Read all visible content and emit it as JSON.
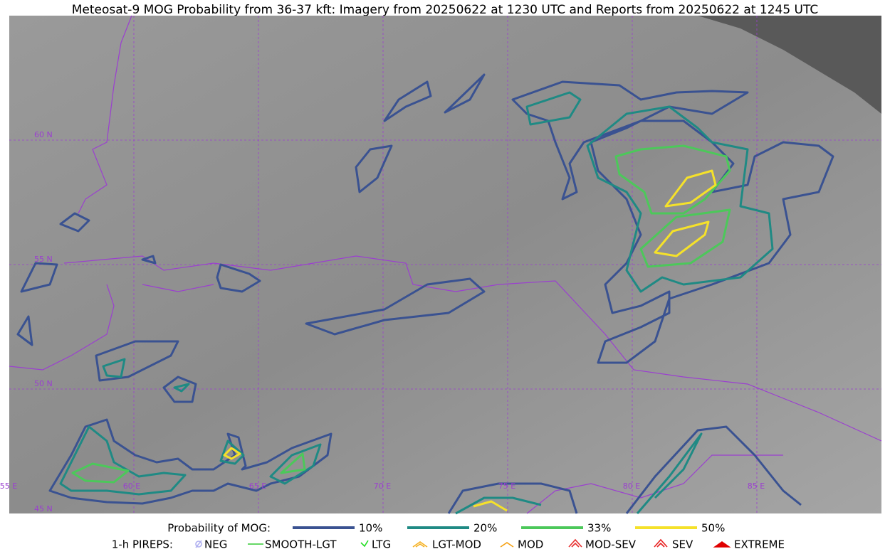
{
  "title": "Meteosat-9 MOG Probability from 36-37 kft: Imagery from 20250622 at 1230 UTC and Reports from 20250622 at 1245 UTC",
  "grid_labels": {
    "lat": [
      "60 N",
      "55 N",
      "50 N",
      "45 N"
    ],
    "lon": [
      "55 E",
      "60 E",
      "65 E",
      "70 E",
      "75 E",
      "80 E",
      "85 E"
    ]
  },
  "legend": {
    "probability": {
      "label": "Probability of MOG:",
      "items": [
        {
          "label": "10%",
          "color": "#3a5291"
        },
        {
          "label": "20%",
          "color": "#1f8a84"
        },
        {
          "label": "33%",
          "color": "#4cc85a"
        },
        {
          "label": "50%",
          "color": "#f5e12a"
        }
      ]
    },
    "pireps": {
      "label": "1-h PIREPS:",
      "items": [
        {
          "label": "NEG",
          "color": "#b0b0f0"
        },
        {
          "label": "SMOOTH-LGT",
          "color": "#33cc33"
        },
        {
          "label": "LTG",
          "color": "#22dd22"
        },
        {
          "label": "LGT-MOD",
          "color": "#f5b020"
        },
        {
          "label": "MOD",
          "color": "#f5a010"
        },
        {
          "label": "MOD-SEV",
          "color": "#e83030"
        },
        {
          "label": "SEV",
          "color": "#e82020"
        },
        {
          "label": "EXTREME",
          "color": "#e00000"
        }
      ]
    }
  }
}
